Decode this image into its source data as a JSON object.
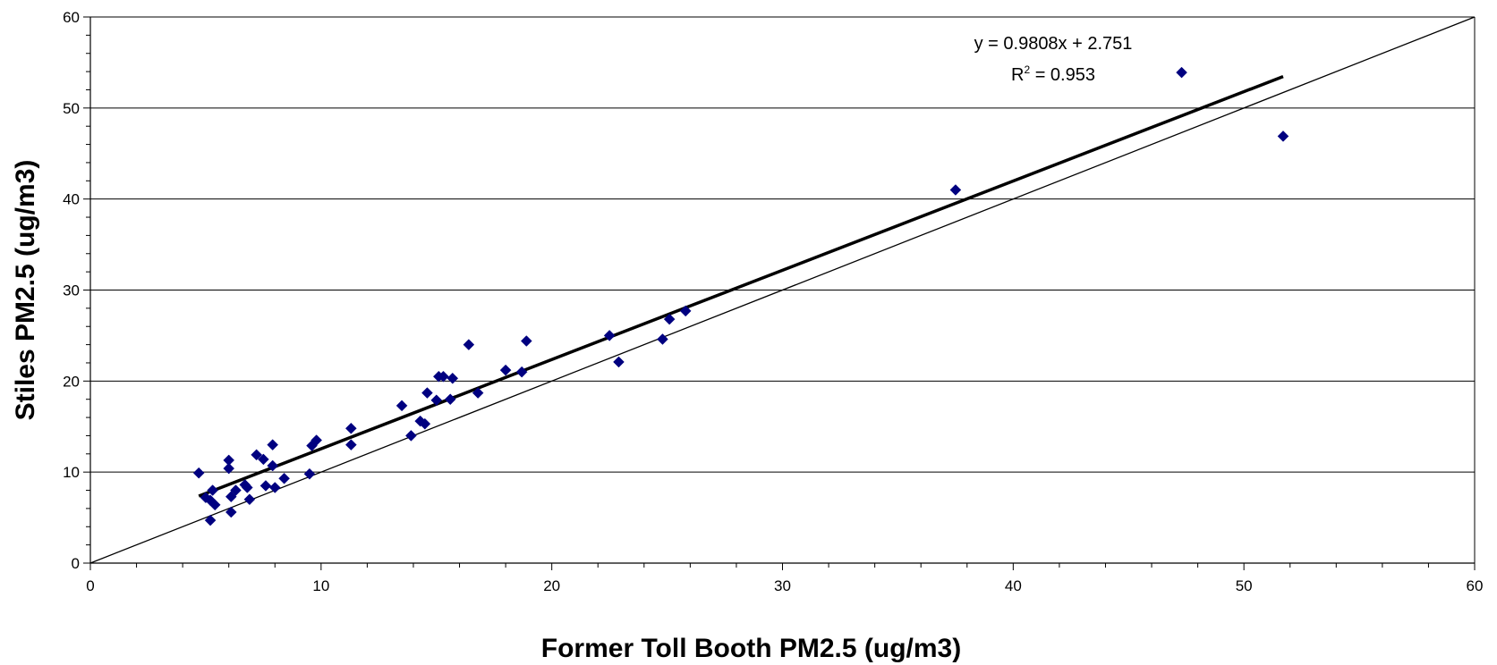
{
  "chart_data": {
    "type": "scatter",
    "title": "",
    "xlabel": "Former Toll Booth PM2.5 (ug/m3)",
    "ylabel": "Stiles PM2.5 (ug/m3)",
    "xlim": [
      0,
      60
    ],
    "ylim": [
      0,
      60
    ],
    "x_ticks": [
      0,
      10,
      20,
      30,
      40,
      50,
      60
    ],
    "x_tick_labels": [
      "0",
      "10",
      "20",
      "30",
      "40",
      "50",
      "60"
    ],
    "y_ticks": [
      0,
      10,
      20,
      30,
      40,
      50,
      60
    ],
    "y_tick_labels": [
      "0",
      "10",
      "20",
      "30",
      "40",
      "50",
      "60"
    ],
    "grid": "horizontal",
    "legend": "none",
    "marker_color": "#000080",
    "series": [
      {
        "marker": "diamond",
        "x": [
          4.7,
          5.0,
          5.2,
          5.3,
          5.2,
          5.4,
          6.0,
          6.0,
          6.1,
          6.1,
          6.3,
          6.7,
          6.8,
          6.9,
          7.2,
          7.5,
          7.6,
          7.9,
          7.9,
          8.0,
          8.4,
          9.5,
          9.6,
          9.8,
          11.3,
          11.3,
          13.5,
          13.9,
          14.3,
          14.5,
          14.6,
          15.0,
          15.1,
          15.3,
          15.6,
          15.7,
          16.4,
          16.8,
          18.0,
          18.7,
          18.9,
          22.5,
          22.9,
          24.8,
          25.1,
          25.8,
          37.5,
          47.3,
          51.7
        ],
        "y": [
          9.9,
          7.2,
          4.7,
          8.0,
          6.9,
          6.4,
          11.3,
          10.4,
          5.6,
          7.3,
          8.0,
          8.6,
          8.3,
          7.0,
          11.9,
          11.4,
          8.5,
          13.0,
          10.7,
          8.3,
          9.3,
          9.8,
          12.9,
          13.5,
          14.8,
          13.0,
          17.3,
          14.0,
          15.6,
          15.3,
          18.7,
          17.9,
          20.5,
          20.5,
          18.0,
          20.3,
          24.0,
          18.7,
          21.2,
          21.0,
          24.4,
          25.0,
          22.1,
          24.6,
          26.8,
          27.7,
          41.0,
          53.9,
          46.9
        ]
      }
    ],
    "trendline": {
      "type": "linear",
      "slope": 0.9808,
      "intercept": 2.751,
      "x_range": [
        4.7,
        51.7
      ],
      "equation_label": "y = 0.9808x + 2.751",
      "r2_prefix": "R",
      "r2_exponent": "2",
      "r2_suffix": " = 0.953"
    },
    "reference_line": {
      "type": "identity",
      "slope": 1,
      "intercept": 0,
      "x_range": [
        0,
        60
      ]
    }
  }
}
